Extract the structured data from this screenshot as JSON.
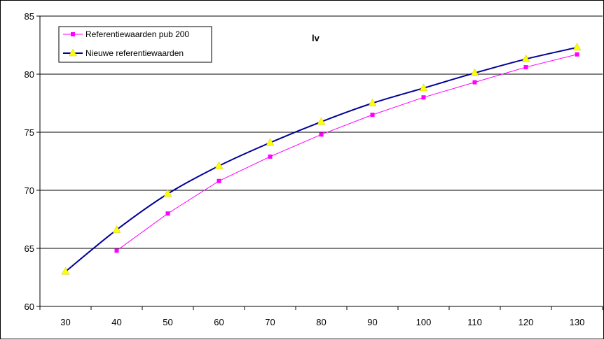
{
  "chart_data": {
    "type": "line",
    "title": "lv",
    "xlabel": "",
    "ylabel": "",
    "x": [
      30,
      40,
      50,
      60,
      70,
      80,
      90,
      100,
      110,
      120,
      130
    ],
    "xlim": [
      30,
      130
    ],
    "ylim": [
      60,
      85
    ],
    "yticks": [
      60,
      65,
      70,
      75,
      80,
      85
    ],
    "grid": "horizontal",
    "legend_position": "top-left",
    "series": [
      {
        "name": "Referentiewaarden pub 200",
        "color": "#FF00FF",
        "marker": "square",
        "smooth": false,
        "values": [
          null,
          64.8,
          68.0,
          70.8,
          72.9,
          74.8,
          76.5,
          78.0,
          79.3,
          80.6,
          81.7
        ]
      },
      {
        "name": "Nieuwe referentiewaarden",
        "color": "#000099",
        "marker": "triangle",
        "marker_color": "#FFFF00",
        "smooth": true,
        "values": [
          63.0,
          66.6,
          69.7,
          72.1,
          74.1,
          75.9,
          77.5,
          78.8,
          80.1,
          81.3,
          82.3
        ]
      }
    ]
  }
}
